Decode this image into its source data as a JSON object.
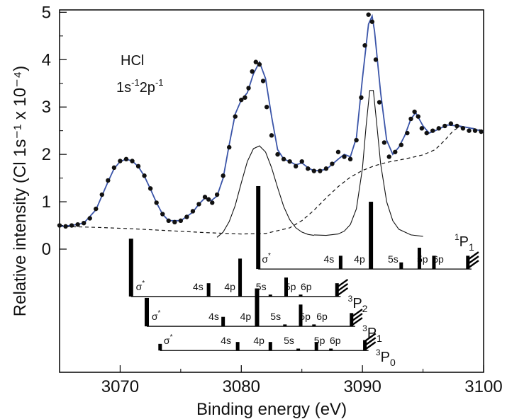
{
  "chart_data": {
    "type": "line",
    "xlabel": "Binding energy (eV)",
    "ylabel": "Relative intensity (Cl 1s⁻¹ x 10⁻⁴)",
    "xlim": [
      3065,
      3100
    ],
    "ylim": [
      -2.6,
      5.05
    ],
    "x_ticks": [
      "3070",
      "3080",
      "3090",
      "3100"
    ],
    "y_ticks": [
      "0",
      "1",
      "2",
      "3",
      "4",
      "5"
    ],
    "grid": false,
    "annotation": {
      "line1": "HCl",
      "line2_main": "1s",
      "line2_sup1": "-1",
      "line2_mid": "2p",
      "line2_sup2": "-1"
    },
    "colors": {
      "fit": "#3a54a8",
      "points": "#111111",
      "components": "#111111"
    },
    "series": [
      {
        "style": "markers",
        "x": [
          3065.0,
          3065.5,
          3066.0,
          3066.5,
          3067.0,
          3067.5,
          3068.0,
          3068.5,
          3069.0,
          3069.5,
          3070.0,
          3070.5,
          3071.0,
          3071.5,
          3072.0,
          3072.5,
          3073.0,
          3073.5,
          3074.0,
          3074.5,
          3075.0,
          3075.5,
          3076.0,
          3076.5,
          3077.0,
          3077.3,
          3077.6,
          3078.0,
          3078.5,
          3079.0,
          3079.5,
          3080.0,
          3080.3,
          3080.6,
          3080.9,
          3081.2,
          3081.5,
          3081.8,
          3082.1,
          3082.5,
          3083.0,
          3083.5,
          3084.0,
          3084.5,
          3085.0,
          3085.5,
          3086.0,
          3086.5,
          3087.0,
          3087.5,
          3088.0,
          3088.5,
          3089.0,
          3089.5,
          3089.9,
          3090.2,
          3090.5,
          3090.8,
          3091.1,
          3091.4,
          3091.8,
          3092.2,
          3092.7,
          3093.2,
          3093.7,
          3094.0,
          3094.3,
          3094.6,
          3094.9,
          3095.3,
          3095.8,
          3096.3,
          3096.8,
          3097.3,
          3097.8,
          3098.3,
          3098.8,
          3099.3,
          3099.8
        ],
        "y": [
          0.5,
          0.48,
          0.5,
          0.52,
          0.55,
          0.65,
          0.85,
          1.15,
          1.45,
          1.72,
          1.86,
          1.9,
          1.86,
          1.75,
          1.55,
          1.28,
          0.98,
          0.74,
          0.6,
          0.57,
          0.6,
          0.68,
          0.8,
          0.95,
          1.1,
          1.05,
          0.98,
          1.15,
          1.55,
          2.15,
          2.8,
          3.15,
          3.2,
          3.4,
          3.75,
          3.95,
          3.9,
          3.55,
          3.0,
          2.4,
          2.0,
          1.9,
          1.85,
          1.75,
          1.85,
          1.7,
          1.65,
          1.65,
          1.7,
          1.8,
          2.05,
          1.95,
          1.9,
          2.3,
          3.2,
          4.3,
          4.95,
          4.8,
          4.0,
          3.1,
          2.25,
          1.95,
          2.05,
          2.2,
          2.45,
          2.75,
          2.9,
          2.8,
          2.55,
          2.45,
          2.5,
          2.55,
          2.6,
          2.65,
          2.6,
          2.55,
          2.5,
          2.5,
          2.48
        ]
      },
      {
        "style": "fit",
        "x": [
          3065.0,
          3066.0,
          3067.0,
          3068.0,
          3069.0,
          3069.5,
          3070.0,
          3070.5,
          3071.0,
          3071.5,
          3072.0,
          3072.5,
          3073.0,
          3073.5,
          3074.0,
          3075.0,
          3076.0,
          3076.5,
          3077.0,
          3077.5,
          3078.0,
          3078.5,
          3079.0,
          3079.5,
          3080.0,
          3080.5,
          3081.0,
          3081.5,
          3082.0,
          3082.5,
          3083.0,
          3083.5,
          3084.0,
          3084.5,
          3085.0,
          3085.5,
          3086.0,
          3087.0,
          3088.0,
          3088.5,
          3089.0,
          3089.5,
          3090.0,
          3090.5,
          3090.8,
          3091.0,
          3091.5,
          3092.0,
          3092.5,
          3093.0,
          3093.5,
          3094.0,
          3094.4,
          3095.0,
          3095.5,
          3096.0,
          3097.0,
          3098.0,
          3099.0,
          3100.0
        ],
        "y": [
          0.48,
          0.5,
          0.55,
          0.83,
          1.42,
          1.7,
          1.85,
          1.9,
          1.86,
          1.74,
          1.54,
          1.27,
          0.98,
          0.74,
          0.6,
          0.6,
          0.78,
          0.95,
          1.08,
          1.02,
          1.12,
          1.5,
          2.2,
          2.85,
          3.15,
          3.3,
          3.7,
          3.95,
          3.6,
          2.8,
          2.1,
          1.9,
          1.85,
          1.78,
          1.82,
          1.72,
          1.65,
          1.68,
          1.9,
          2.0,
          1.95,
          2.35,
          3.6,
          4.75,
          4.92,
          4.6,
          3.3,
          2.3,
          2.0,
          2.15,
          2.4,
          2.75,
          2.88,
          2.6,
          2.45,
          2.5,
          2.62,
          2.6,
          2.55,
          2.48
        ]
      },
      {
        "style": "dashed",
        "x": [
          3065.0,
          3068.0,
          3071.0,
          3074.0,
          3077.0,
          3080.0,
          3082.0,
          3084.0,
          3085.0,
          3086.0,
          3087.0,
          3088.0,
          3089.0,
          3090.0,
          3091.0,
          3092.0,
          3093.0,
          3094.0,
          3095.0,
          3096.0,
          3096.8,
          3097.5,
          3098.0,
          3099.0,
          3100.0
        ],
        "y": [
          0.48,
          0.46,
          0.43,
          0.39,
          0.35,
          0.32,
          0.33,
          0.45,
          0.6,
          0.82,
          1.08,
          1.32,
          1.52,
          1.66,
          1.76,
          1.83,
          1.88,
          1.93,
          1.99,
          2.1,
          2.3,
          2.5,
          2.58,
          2.56,
          2.5
        ]
      },
      {
        "style": "component",
        "x": [
          3078.0,
          3078.5,
          3079.0,
          3079.5,
          3080.0,
          3080.5,
          3081.0,
          3081.5,
          3082.0,
          3082.5,
          3083.0,
          3083.5,
          3084.0,
          3084.5,
          3085.0,
          3085.5,
          3086.0
        ],
        "y": [
          0.25,
          0.36,
          0.58,
          0.92,
          1.4,
          1.85,
          2.12,
          2.18,
          2.05,
          1.72,
          1.3,
          0.9,
          0.62,
          0.45,
          0.36,
          0.31,
          0.29
        ]
      },
      {
        "style": "component",
        "x": [
          3086.0,
          3087.0,
          3088.0,
          3088.5,
          3089.0,
          3089.5,
          3090.0,
          3090.3,
          3090.6,
          3090.9,
          3091.2,
          3091.5,
          3092.0,
          3092.5,
          3093.0,
          3094.0,
          3095.0
        ],
        "y": [
          0.3,
          0.29,
          0.32,
          0.38,
          0.52,
          0.85,
          1.7,
          2.6,
          3.35,
          3.35,
          2.6,
          1.8,
          1.0,
          0.6,
          0.42,
          0.3,
          0.27
        ]
      }
    ],
    "sticks": [
      {
        "row": 0,
        "x": 3081.4,
        "h": 1.75,
        "w": 6
      },
      {
        "row": 0,
        "x": 3088.2,
        "h": 0.28,
        "w": 5
      },
      {
        "row": 0,
        "x": 3090.7,
        "h": 1.42,
        "w": 6
      },
      {
        "row": 0,
        "x": 3093.2,
        "h": 0.14,
        "w": 5
      },
      {
        "row": 0,
        "x": 3094.7,
        "h": 0.45,
        "w": 5
      },
      {
        "row": 0,
        "x": 3095.9,
        "h": 0.28,
        "w": 5
      },
      {
        "row": 0,
        "x": 3098.7,
        "h": 0.28,
        "w": 5
      },
      {
        "row": 1,
        "x": 3070.9,
        "h": 1.22,
        "w": 6
      },
      {
        "row": 1,
        "x": 3077.3,
        "h": 0.28,
        "w": 5
      },
      {
        "row": 1,
        "x": 3079.9,
        "h": 0.8,
        "w": 5
      },
      {
        "row": 1,
        "x": 3082.4,
        "h": 0.04,
        "w": 5
      },
      {
        "row": 1,
        "x": 3083.7,
        "h": 0.4,
        "w": 5
      },
      {
        "row": 1,
        "x": 3084.9,
        "h": 0.04,
        "w": 5
      },
      {
        "row": 1,
        "x": 3087.9,
        "h": 0.28,
        "w": 5
      },
      {
        "row": 2,
        "x": 3072.2,
        "h": 0.6,
        "w": 6
      },
      {
        "row": 2,
        "x": 3078.5,
        "h": 0.2,
        "w": 5
      },
      {
        "row": 2,
        "x": 3081.3,
        "h": 0.8,
        "w": 6
      },
      {
        "row": 2,
        "x": 3083.6,
        "h": 0.04,
        "w": 5
      },
      {
        "row": 2,
        "x": 3084.9,
        "h": 0.46,
        "w": 5
      },
      {
        "row": 2,
        "x": 3086.0,
        "h": 0.04,
        "w": 5
      },
      {
        "row": 2,
        "x": 3089.1,
        "h": 0.28,
        "w": 5
      },
      {
        "row": 3,
        "x": 3073.3,
        "h": 0.14,
        "w": 5
      },
      {
        "row": 3,
        "x": 3079.7,
        "h": 0.18,
        "w": 5
      },
      {
        "row": 3,
        "x": 3082.4,
        "h": 0.18,
        "w": 5
      },
      {
        "row": 3,
        "x": 3084.7,
        "h": 0.04,
        "w": 5
      },
      {
        "row": 3,
        "x": 3086.2,
        "h": 0.18,
        "w": 5
      },
      {
        "row": 3,
        "x": 3087.4,
        "h": 0.04,
        "w": 5
      },
      {
        "row": 3,
        "x": 3090.2,
        "h": 0.22,
        "w": 5
      }
    ],
    "level_rows": [
      {
        "baseline": -0.42,
        "x_start": 3081.4,
        "x_end": 3099.0,
        "labels": [
          {
            "text": "σ",
            "sup": "*",
            "x": 3081.7
          },
          {
            "text": "4s",
            "x": 3086.8
          },
          {
            "text": "4p",
            "x": 3089.3
          },
          {
            "text": "5s",
            "x": 3092.1
          },
          {
            "text": "5p",
            "x": 3094.5
          },
          {
            "text": "6p",
            "x": 3095.8
          }
        ],
        "term": {
          "sup": "1",
          "main": "P",
          "sub": "1",
          "x": 3097.6,
          "dy": 0.72
        }
      },
      {
        "baseline": -1.0,
        "x_start": 3070.9,
        "x_end": 3088.2,
        "labels": [
          {
            "text": "σ",
            "sup": "*",
            "x": 3071.3
          },
          {
            "text": "4s",
            "x": 3076.0
          },
          {
            "text": "4p",
            "x": 3078.6
          },
          {
            "text": "5s",
            "x": 3081.2
          },
          {
            "text": "5p",
            "x": 3083.6
          },
          {
            "text": "6p",
            "x": 3084.9
          }
        ],
        "term": {
          "sup": "3",
          "main": "P",
          "sub": "2",
          "x": 3088.8,
          "dy": 0.0
        }
      },
      {
        "baseline": -1.63,
        "x_start": 3072.2,
        "x_end": 3089.4,
        "labels": [
          {
            "text": "σ",
            "sup": "*",
            "x": 3072.6
          },
          {
            "text": "4s",
            "x": 3077.3
          },
          {
            "text": "4p",
            "x": 3079.9
          },
          {
            "text": "5s",
            "x": 3082.4
          },
          {
            "text": "5p",
            "x": 3084.8
          },
          {
            "text": "6p",
            "x": 3086.2
          }
        ],
        "term": {
          "sup": "3",
          "main": "P",
          "sub": "1",
          "x": 3090.0,
          "dy": 0.0
        }
      },
      {
        "baseline": -2.14,
        "x_start": 3073.3,
        "x_end": 3090.5,
        "labels": [
          {
            "text": "σ",
            "sup": "*",
            "x": 3073.6
          },
          {
            "text": "4s",
            "x": 3078.3
          },
          {
            "text": "4p",
            "x": 3081.0
          },
          {
            "text": "5s",
            "x": 3083.5
          },
          {
            "text": "5p",
            "x": 3086.0
          },
          {
            "text": "6p",
            "x": 3087.3
          }
        ],
        "term": {
          "sup": "3",
          "main": "P",
          "sub": "0",
          "x": 3091.1,
          "dy": 0.0
        }
      }
    ]
  }
}
